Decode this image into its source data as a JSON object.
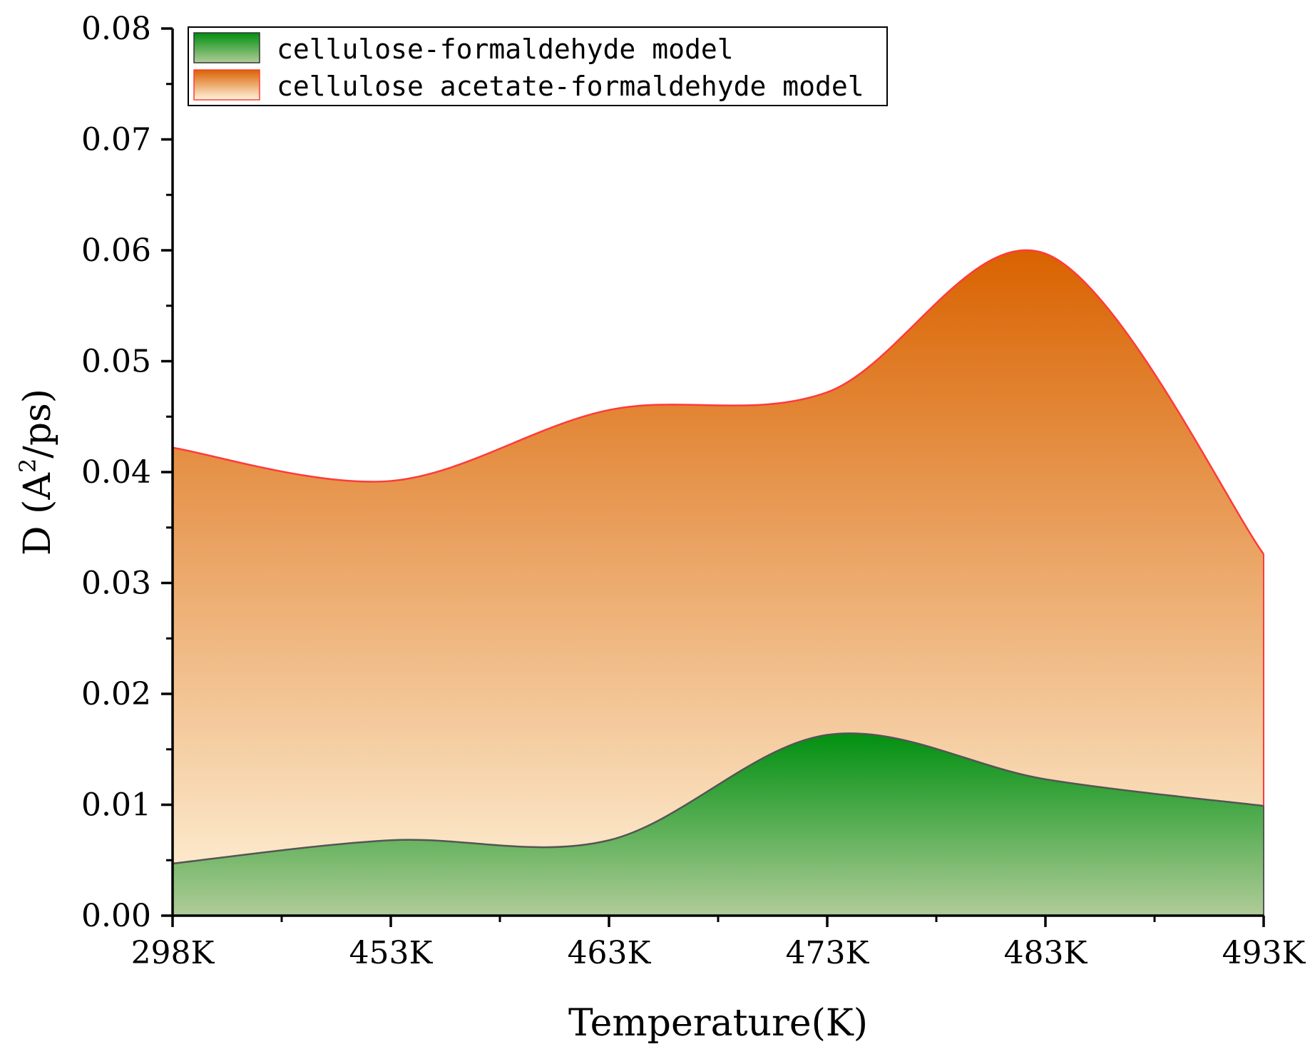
{
  "chart_data": {
    "type": "area",
    "categories": [
      "298K",
      "453K",
      "463K",
      "473K",
      "483K",
      "493K"
    ],
    "series": [
      {
        "name": "cellulose acetate-formaldehyde model",
        "values": [
          0.0422,
          0.0392,
          0.0456,
          0.0472,
          0.0597,
          0.0326
        ],
        "color_top": "#d96200",
        "color_bottom": "#fff4dc",
        "line_color": "#ff3a3a"
      },
      {
        "name": "cellulose-formaldehyde model",
        "values": [
          0.0047,
          0.0068,
          0.0068,
          0.0163,
          0.0123,
          0.0099
        ],
        "color_top": "#009010",
        "color_bottom": "#b0cc98",
        "line_color": "#555555"
      }
    ],
    "y_ticks": [
      "0.00",
      "0.01",
      "0.02",
      "0.03",
      "0.04",
      "0.05",
      "0.06",
      "0.07",
      "0.08"
    ],
    "ylim": [
      0,
      0.08
    ],
    "xlabel": "Temperature(K)",
    "ylabel": "D (A²/ps)",
    "ylabel_parts": {
      "pre": "D (A",
      "sup": "2",
      "post": "/ps)"
    },
    "legend_position": "top-left",
    "grid": false
  }
}
